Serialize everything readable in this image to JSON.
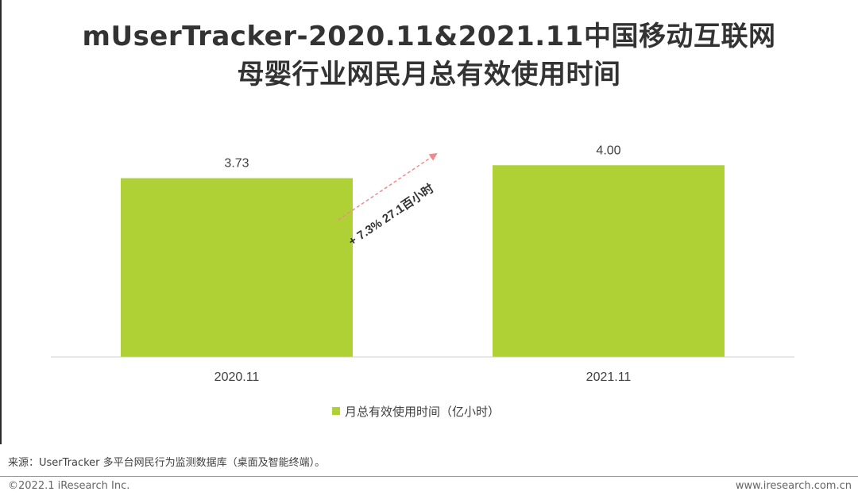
{
  "title": {
    "line1": "mUserTracker-2020.11&2021.11中国移动互联网",
    "line2": "母婴行业网民月总有效使用时间"
  },
  "legend_label": "月总有效使用时间（亿小时）",
  "annotation": "+ 7.3%  27.1百小时",
  "source": "来源：UserTracker 多平台网民行为监测数据库（桌面及智能终端）。",
  "footer": {
    "copyright": "©2022.1 iResearch Inc.",
    "website": "www.iresearch.com.cn"
  },
  "colors": {
    "bar": "#b0d136",
    "arrow": "#f08a8a",
    "axis": "#d0d0d0",
    "text": "#404040"
  },
  "chart_data": {
    "type": "bar",
    "categories": [
      "2020.11",
      "2021.11"
    ],
    "series": [
      {
        "name": "月总有效使用时间（亿小时）",
        "values": [
          3.73,
          4.0
        ]
      }
    ],
    "data_labels": [
      "3.73",
      "4.00"
    ],
    "ylim": [
      0,
      4.6
    ],
    "grid": false,
    "legend_position": "bottom"
  }
}
